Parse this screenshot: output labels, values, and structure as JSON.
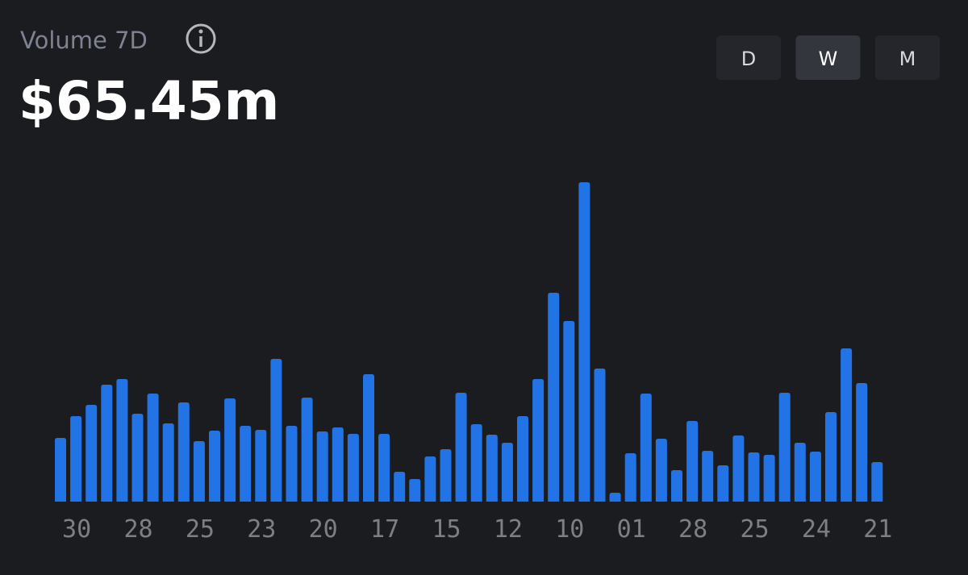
{
  "header": {
    "title": "Volume 7D",
    "value": "$65.45m"
  },
  "buttons": [
    {
      "label": "D",
      "active": false
    },
    {
      "label": "W",
      "active": true
    },
    {
      "label": "M",
      "active": false
    }
  ],
  "chart_data": {
    "type": "bar",
    "color": "#2274e6",
    "categories": [
      null,
      "30",
      null,
      null,
      null,
      "28",
      null,
      null,
      null,
      "25",
      null,
      null,
      null,
      "23",
      null,
      null,
      null,
      "20",
      null,
      null,
      null,
      "17",
      null,
      null,
      null,
      "15",
      null,
      null,
      null,
      "12",
      null,
      null,
      null,
      "10",
      null,
      null,
      null,
      "01",
      null,
      null,
      null,
      "28",
      null,
      null,
      null,
      "25",
      null,
      null,
      null,
      "24",
      null,
      null,
      null,
      "21"
    ],
    "values": [
      79,
      106,
      120,
      145,
      152,
      109,
      134,
      97,
      123,
      75,
      88,
      128,
      94,
      89,
      177,
      94,
      129,
      87,
      92,
      84,
      158,
      84,
      37,
      28,
      56,
      65,
      135,
      96,
      83,
      73,
      106,
      152,
      259,
      224,
      396,
      165,
      11,
      60,
      134,
      78,
      39,
      100,
      63,
      45,
      82,
      61,
      58,
      135,
      73,
      62,
      111,
      190,
      147,
      49
    ]
  }
}
